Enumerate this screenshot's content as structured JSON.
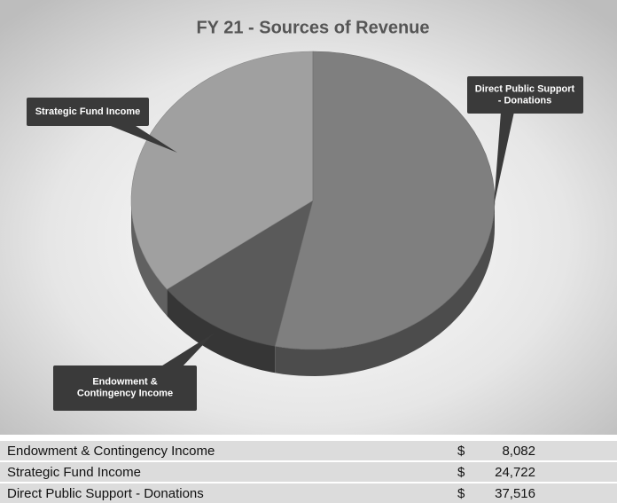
{
  "chart_data": {
    "type": "pie",
    "title": "FY 21 - Sources of Revenue",
    "categories": [
      "Endowment & Contingency Income",
      "Strategic Fund Income",
      "Direct Public Support - Donations"
    ],
    "values": [
      8082,
      24722,
      37516
    ],
    "colors": [
      "#5a5a5a",
      "#a0a0a0",
      "#7f7f7f"
    ]
  },
  "table": {
    "rows": [
      [
        "Endowment & Contingency Income",
        "$",
        "8,082"
      ],
      [
        "Strategic Fund Income",
        "$",
        "24,722"
      ],
      [
        "Direct Public Support - Donations",
        "$",
        "37,516"
      ]
    ]
  }
}
